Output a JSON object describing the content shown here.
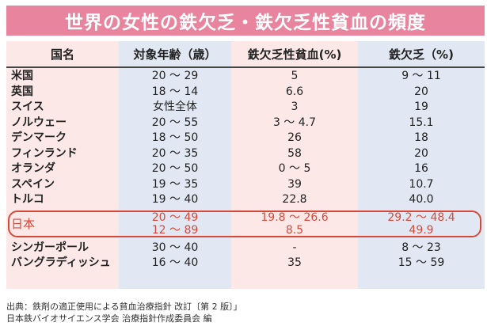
{
  "title": "世界の女性の鉄欠乏・鉄欠乏性貧血の頻度",
  "colors": {
    "banner": "#e8849e",
    "pink_col": "#fde8e8",
    "blue_col": "#e2e8f3",
    "highlight": "#d44a3a"
  },
  "table": {
    "headers": [
      "国名",
      "対象年齢（歳）",
      "鉄欠乏性貧血(%)",
      "鉄欠乏（%)"
    ],
    "rows_before": [
      {
        "country": "米国",
        "age": "20 〜 29",
        "anemia": "5",
        "deficiency": "9 〜 11"
      },
      {
        "country": "英国",
        "age": "18 〜 14",
        "anemia": "6.6",
        "deficiency": "20"
      },
      {
        "country": "スイス",
        "age": "女性全体",
        "anemia": "3",
        "deficiency": "19"
      },
      {
        "country": "ノルウェー",
        "age": "20 〜 55",
        "anemia": "3 〜 4.7",
        "deficiency": "15.1"
      },
      {
        "country": "デンマーク",
        "age": "18 〜 50",
        "anemia": "26",
        "deficiency": "18"
      },
      {
        "country": "フィンランド",
        "age": "20 〜 35",
        "anemia": "58",
        "deficiency": "20"
      },
      {
        "country": "オランダ",
        "age": "20 〜 50",
        "anemia": "0 〜 5",
        "deficiency": "16"
      },
      {
        "country": "スペイン",
        "age": "19 〜 35",
        "anemia": "39",
        "deficiency": "10.7"
      },
      {
        "country": "トルコ",
        "age": "19 〜 40",
        "anemia": "22.8",
        "deficiency": "40.0"
      }
    ],
    "japan": {
      "country": "日本",
      "age": [
        "20 〜 49",
        "12 〜 89"
      ],
      "anemia": [
        "19.8 〜 26.6",
        "8.5"
      ],
      "deficiency": [
        "29.2 〜 48.4",
        "49.9"
      ]
    },
    "rows_after": [
      {
        "country": "シンガーポール",
        "age": "30 〜 40",
        "anemia": "-",
        "deficiency": "8 〜 23"
      },
      {
        "country": "バングラディッシュ",
        "age": "16 〜 40",
        "anemia": "35",
        "deficiency": "15 〜 59"
      }
    ]
  },
  "footer": {
    "line1": "出典：鉄剤の適正使用による貧血治療指針 改訂〔第 2 版〕」",
    "line2": "日本鉄バイオサイエンス学会 治療指針作成委員会 編"
  }
}
